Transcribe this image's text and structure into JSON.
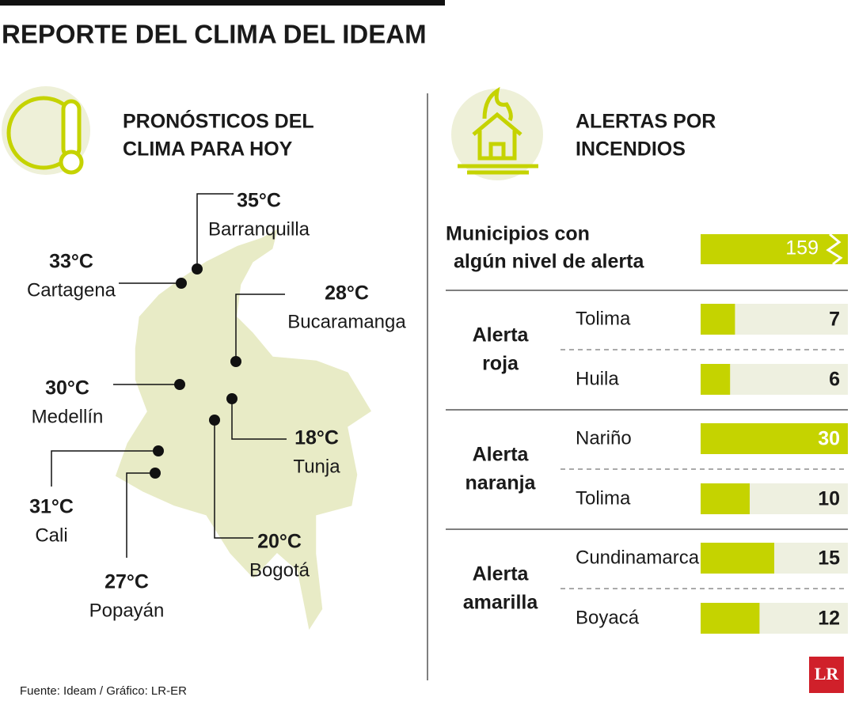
{
  "title": "REPORTE DEL CLIMA DEL IDEAM",
  "forecast": {
    "heading": [
      "PRONÓSTICOS DEL",
      "CLIMA PARA HOY"
    ],
    "cities": [
      {
        "temp": "35°C",
        "name": "Barranquilla"
      },
      {
        "temp": "33°C",
        "name": "Cartagena"
      },
      {
        "temp": "28°C",
        "name": "Bucaramanga"
      },
      {
        "temp": "30°C",
        "name": "Medellín"
      },
      {
        "temp": "18°C",
        "name": "Tunja"
      },
      {
        "temp": "31°C",
        "name": "Cali"
      },
      {
        "temp": "27°C",
        "name": "Popayán"
      },
      {
        "temp": "20°C",
        "name": "Bogotá"
      }
    ]
  },
  "alerts": {
    "heading": [
      "ALERTAS POR",
      "INCENDIOS"
    ],
    "total": {
      "label": [
        "Municipios con",
        "algún nivel de alerta"
      ],
      "value": 159
    },
    "groups": [
      {
        "label": [
          "Alerta",
          "roja"
        ],
        "rows": [
          {
            "name": "Tolima",
            "value": 7
          },
          {
            "name": "Huila",
            "value": 6
          }
        ]
      },
      {
        "label": [
          "Alerta",
          "naranja"
        ],
        "rows": [
          {
            "name": "Nariño",
            "value": 30
          },
          {
            "name": "Tolima",
            "value": 10
          }
        ]
      },
      {
        "label": [
          "Alerta",
          "amarilla"
        ],
        "rows": [
          {
            "name": "Cundinamarca",
            "value": 15
          },
          {
            "name": "Boyacá",
            "value": 12
          }
        ]
      }
    ]
  },
  "source": "Fuente: Ideam / Gráfico: LR-ER",
  "logo": "LR"
}
